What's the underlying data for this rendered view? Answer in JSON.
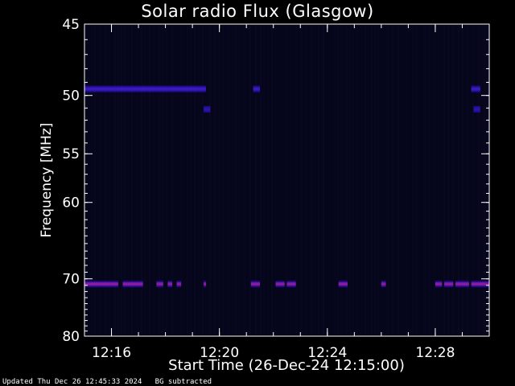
{
  "chart_data": {
    "type": "heatmap",
    "title": "Solar radio Flux (Glasgow)",
    "xlabel": "Start Time (26-Dec-24 12:15:00)",
    "ylabel": "Frequency [MHz]",
    "x_unit": "time (HH:MM, 26-Dec-24)",
    "xlim": [
      "12:15:00",
      "12:30:00"
    ],
    "ylim": [
      45,
      80
    ],
    "y_scale": "reverse (45 at top, 80 at bottom)",
    "x_ticks": [
      "12:16",
      "12:20",
      "12:24",
      "12:28"
    ],
    "y_ticks": [
      45,
      50,
      55,
      60,
      70,
      80
    ],
    "background": "near-black dark blue",
    "grid": false,
    "bands": [
      {
        "frequency_mhz": 49.5,
        "color": "#3a1ab8",
        "segments": [
          [
            "12:15:00",
            "12:19:30"
          ],
          [
            "12:21:15",
            "12:21:30"
          ],
          [
            "12:29:20",
            "12:29:40"
          ]
        ]
      },
      {
        "frequency_mhz": 51.1,
        "color": "#2a14a0",
        "segments": [
          [
            "12:19:25",
            "12:19:40"
          ],
          [
            "12:29:25",
            "12:29:40"
          ]
        ]
      },
      {
        "frequency_mhz": 70.8,
        "color": "#8a1a9c",
        "segments": [
          [
            "12:15:00",
            "12:16:15"
          ],
          [
            "12:16:25",
            "12:17:10"
          ],
          [
            "12:17:40",
            "12:17:55"
          ],
          [
            "12:18:05",
            "12:18:15"
          ],
          [
            "12:18:25",
            "12:18:35"
          ],
          [
            "12:19:25",
            "12:19:30"
          ],
          [
            "12:21:10",
            "12:21:30"
          ],
          [
            "12:22:05",
            "12:22:25"
          ],
          [
            "12:22:30",
            "12:22:50"
          ],
          [
            "12:24:25",
            "12:24:45"
          ],
          [
            "12:26:00",
            "12:26:10"
          ],
          [
            "12:28:00",
            "12:28:15"
          ],
          [
            "12:28:20",
            "12:28:40"
          ],
          [
            "12:28:45",
            "12:29:15"
          ],
          [
            "12:29:20",
            "12:30:00"
          ]
        ]
      }
    ]
  },
  "colors": {
    "background": "#000000",
    "plot_background": "#06061a",
    "axis": "#ffffff",
    "text": "#ffffff"
  },
  "footer": {
    "updated": "Updated Thu Dec 26 12:45:33 2024",
    "note": "BG subtracted"
  }
}
